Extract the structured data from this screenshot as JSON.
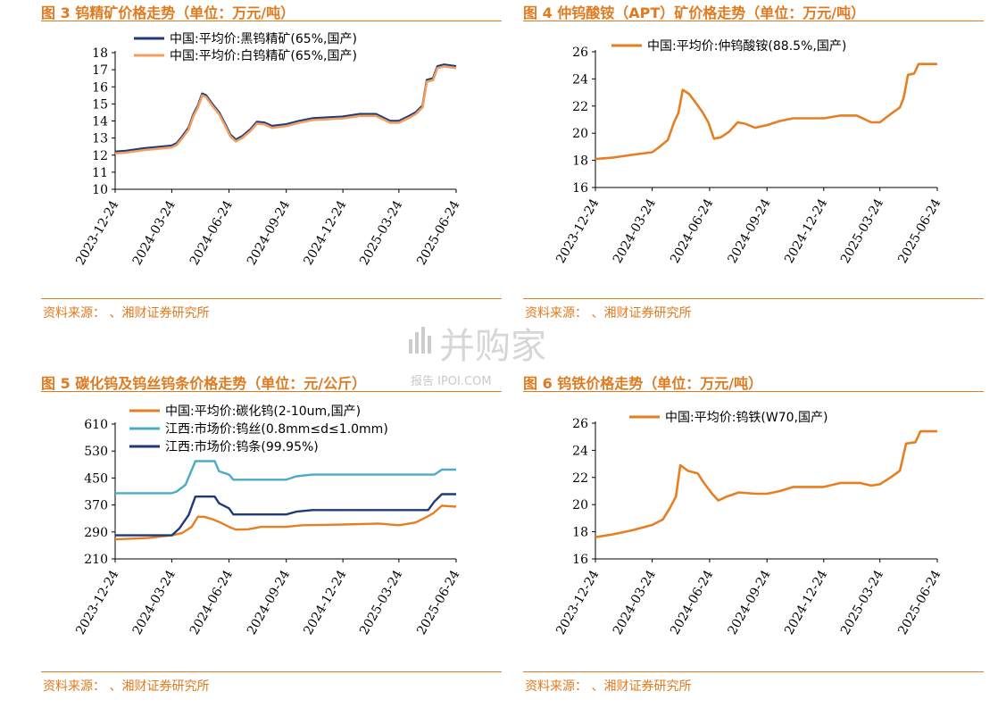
{
  "panels": [
    {
      "title": "图 3  钨精矿价格走势（单位：万元/吨）",
      "source": "资料来源：        、湘财证券研究所"
    },
    {
      "title": "图 4  仲钨酸铵（APT）矿价格走势（单位：万元/吨）",
      "source": "资料来源：        、湘财证券研究所"
    },
    {
      "title": "图 5  碳化钨及钨丝钨条价格走势（单位：元/公斤）",
      "source": "资料来源：        、湘财证券研究所"
    },
    {
      "title": "图 6  钨铁价格走势（单位：万元/吨）",
      "source": "资料来源：        、湘财证券研究所"
    }
  ],
  "watermark": {
    "main": "并购家",
    "sub": "报告 IPOI.COM"
  },
  "chart_data": [
    {
      "type": "line",
      "title": "",
      "xlabel": "",
      "ylabel": "",
      "x_ticks": [
        "2023-12-24",
        "2024-03-24",
        "2024-06-24",
        "2024-09-24",
        "2024-12-24",
        "2025-03-24",
        "2025-06-24"
      ],
      "y_ticks": [
        10,
        11,
        12,
        13,
        14,
        15,
        16,
        17,
        18
      ],
      "ylim": [
        10,
        18
      ],
      "legend": "top-left",
      "series": [
        {
          "name": "中国:平均价:黑钨精矿(65%,国产)",
          "color": "#1f3a7a",
          "points": [
            [
              "2023-12-24",
              12.2
            ],
            [
              "2024-01-10",
              12.25
            ],
            [
              "2024-02-10",
              12.4
            ],
            [
              "2024-03-10",
              12.5
            ],
            [
              "2024-03-24",
              12.55
            ],
            [
              "2024-04-01",
              12.7
            ],
            [
              "2024-04-10",
              13.1
            ],
            [
              "2024-04-20",
              13.6
            ],
            [
              "2024-04-28",
              14.4
            ],
            [
              "2024-05-05",
              14.9
            ],
            [
              "2024-05-12",
              15.6
            ],
            [
              "2024-05-18",
              15.5
            ],
            [
              "2024-05-28",
              15.0
            ],
            [
              "2024-06-08",
              14.5
            ],
            [
              "2024-06-18",
              13.8
            ],
            [
              "2024-06-26",
              13.2
            ],
            [
              "2024-07-05",
              12.9
            ],
            [
              "2024-07-15",
              13.1
            ],
            [
              "2024-07-28",
              13.5
            ],
            [
              "2024-08-08",
              13.95
            ],
            [
              "2024-08-20",
              13.9
            ],
            [
              "2024-09-01",
              13.7
            ],
            [
              "2024-09-24",
              13.8
            ],
            [
              "2024-10-15",
              14.0
            ],
            [
              "2024-11-05",
              14.15
            ],
            [
              "2024-12-24",
              14.25
            ],
            [
              "2025-01-20",
              14.4
            ],
            [
              "2025-02-15",
              14.4
            ],
            [
              "2025-03-10",
              14.0
            ],
            [
              "2025-03-24",
              14.0
            ],
            [
              "2025-04-10",
              14.3
            ],
            [
              "2025-04-20",
              14.5
            ],
            [
              "2025-05-01",
              14.9
            ],
            [
              "2025-05-08",
              16.4
            ],
            [
              "2025-05-18",
              16.5
            ],
            [
              "2025-05-25",
              17.2
            ],
            [
              "2025-06-05",
              17.3
            ],
            [
              "2025-06-24",
              17.2
            ]
          ]
        },
        {
          "name": "中国:平均价:白钨精矿(65%,国产)",
          "color": "#f0a060",
          "points": [
            [
              "2023-12-24",
              12.1
            ],
            [
              "2024-01-10",
              12.15
            ],
            [
              "2024-02-10",
              12.3
            ],
            [
              "2024-03-10",
              12.4
            ],
            [
              "2024-03-24",
              12.45
            ],
            [
              "2024-04-01",
              12.6
            ],
            [
              "2024-04-10",
              13.0
            ],
            [
              "2024-04-20",
              13.5
            ],
            [
              "2024-04-28",
              14.3
            ],
            [
              "2024-05-05",
              14.8
            ],
            [
              "2024-05-12",
              15.5
            ],
            [
              "2024-05-18",
              15.4
            ],
            [
              "2024-05-28",
              14.9
            ],
            [
              "2024-06-08",
              14.4
            ],
            [
              "2024-06-18",
              13.7
            ],
            [
              "2024-06-26",
              13.1
            ],
            [
              "2024-07-05",
              12.8
            ],
            [
              "2024-07-15",
              13.0
            ],
            [
              "2024-07-28",
              13.4
            ],
            [
              "2024-08-08",
              13.85
            ],
            [
              "2024-08-20",
              13.8
            ],
            [
              "2024-09-01",
              13.6
            ],
            [
              "2024-09-24",
              13.7
            ],
            [
              "2024-10-15",
              13.9
            ],
            [
              "2024-11-05",
              14.05
            ],
            [
              "2024-12-24",
              14.15
            ],
            [
              "2025-01-20",
              14.3
            ],
            [
              "2025-02-15",
              14.3
            ],
            [
              "2025-03-10",
              13.9
            ],
            [
              "2025-03-24",
              13.9
            ],
            [
              "2025-04-10",
              14.2
            ],
            [
              "2025-04-20",
              14.4
            ],
            [
              "2025-05-01",
              14.8
            ],
            [
              "2025-05-08",
              16.3
            ],
            [
              "2025-05-18",
              16.4
            ],
            [
              "2025-05-25",
              17.1
            ],
            [
              "2025-06-05",
              17.2
            ],
            [
              "2025-06-24",
              17.1
            ]
          ]
        }
      ]
    },
    {
      "type": "line",
      "title": "",
      "xlabel": "",
      "ylabel": "",
      "x_ticks": [
        "2023-12-24",
        "2024-03-24",
        "2024-06-24",
        "2024-09-24",
        "2024-12-24",
        "2025-03-24",
        "2025-06-24"
      ],
      "y_ticks": [
        16,
        18,
        20,
        22,
        24,
        26
      ],
      "ylim": [
        16,
        26
      ],
      "legend": "top-left",
      "series": [
        {
          "name": "中国:平均价:仲钨酸铵(88.5%,国产)",
          "color": "#e67e22",
          "points": [
            [
              "2023-12-24",
              18.1
            ],
            [
              "2024-01-20",
              18.2
            ],
            [
              "2024-02-20",
              18.4
            ],
            [
              "2024-03-24",
              18.6
            ],
            [
              "2024-04-05",
              19.0
            ],
            [
              "2024-04-18",
              19.5
            ],
            [
              "2024-04-28",
              20.8
            ],
            [
              "2024-05-05",
              21.5
            ],
            [
              "2024-05-12",
              23.2
            ],
            [
              "2024-05-22",
              22.9
            ],
            [
              "2024-06-01",
              22.3
            ],
            [
              "2024-06-12",
              21.6
            ],
            [
              "2024-06-22",
              20.8
            ],
            [
              "2024-07-01",
              19.6
            ],
            [
              "2024-07-12",
              19.7
            ],
            [
              "2024-07-25",
              20.1
            ],
            [
              "2024-08-08",
              20.8
            ],
            [
              "2024-08-20",
              20.7
            ],
            [
              "2024-09-05",
              20.4
            ],
            [
              "2024-09-24",
              20.6
            ],
            [
              "2024-10-15",
              20.9
            ],
            [
              "2024-11-05",
              21.1
            ],
            [
              "2024-12-24",
              21.1
            ],
            [
              "2025-01-20",
              21.3
            ],
            [
              "2025-02-15",
              21.3
            ],
            [
              "2025-03-10",
              20.8
            ],
            [
              "2025-03-24",
              20.8
            ],
            [
              "2025-04-10",
              21.4
            ],
            [
              "2025-04-25",
              21.9
            ],
            [
              "2025-05-01",
              22.6
            ],
            [
              "2025-05-08",
              24.3
            ],
            [
              "2025-05-18",
              24.4
            ],
            [
              "2025-05-25",
              25.1
            ],
            [
              "2025-06-24",
              25.1
            ]
          ]
        }
      ]
    },
    {
      "type": "line",
      "title": "",
      "xlabel": "",
      "ylabel": "",
      "x_ticks": [
        "2023-12-24",
        "2024-03-24",
        "2024-06-24",
        "2024-09-24",
        "2024-12-24",
        "2025-03-24",
        "2025-06-24"
      ],
      "y_ticks": [
        210,
        290,
        370,
        450,
        530,
        610
      ],
      "ylim": [
        210,
        610
      ],
      "legend": "top-left",
      "series": [
        {
          "name": "中国:平均价:碳化钨(2-10um,国产)",
          "color": "#e67e22",
          "points": [
            [
              "2023-12-24",
              268
            ],
            [
              "2024-02-15",
              272
            ],
            [
              "2024-03-24",
              280
            ],
            [
              "2024-04-10",
              287
            ],
            [
              "2024-04-25",
              305
            ],
            [
              "2024-05-05",
              335
            ],
            [
              "2024-05-15",
              335
            ],
            [
              "2024-05-28",
              328
            ],
            [
              "2024-06-10",
              318
            ],
            [
              "2024-06-24",
              305
            ],
            [
              "2024-07-05",
              297
            ],
            [
              "2024-07-25",
              298
            ],
            [
              "2024-08-15",
              305
            ],
            [
              "2024-09-24",
              305
            ],
            [
              "2024-10-20",
              310
            ],
            [
              "2024-12-24",
              312
            ],
            [
              "2025-02-20",
              315
            ],
            [
              "2025-03-24",
              310
            ],
            [
              "2025-04-20",
              318
            ],
            [
              "2025-05-05",
              332
            ],
            [
              "2025-05-18",
              345
            ],
            [
              "2025-06-01",
              368
            ],
            [
              "2025-06-24",
              365
            ]
          ]
        },
        {
          "name": "江西:市场价:钨丝(0.8mm≤d≤1.0mm)",
          "color": "#4bacc6",
          "points": [
            [
              "2023-12-24",
              405
            ],
            [
              "2024-03-24",
              405
            ],
            [
              "2024-04-01",
              410
            ],
            [
              "2024-04-15",
              430
            ],
            [
              "2024-05-01",
              500
            ],
            [
              "2024-06-01",
              500
            ],
            [
              "2024-06-08",
              470
            ],
            [
              "2024-06-24",
              460
            ],
            [
              "2024-07-01",
              445
            ],
            [
              "2024-09-24",
              445
            ],
            [
              "2024-10-10",
              455
            ],
            [
              "2024-11-05",
              460
            ],
            [
              "2025-05-20",
              460
            ],
            [
              "2025-06-01",
              475
            ],
            [
              "2025-06-24",
              475
            ]
          ]
        },
        {
          "name": "江西:市场价:钨条(99.95%)",
          "color": "#1f3a7a",
          "points": [
            [
              "2023-12-24",
              280
            ],
            [
              "2024-03-24",
              280
            ],
            [
              "2024-04-05",
              300
            ],
            [
              "2024-04-20",
              340
            ],
            [
              "2024-05-01",
              395
            ],
            [
              "2024-06-01",
              395
            ],
            [
              "2024-06-08",
              375
            ],
            [
              "2024-06-24",
              360
            ],
            [
              "2024-07-01",
              342
            ],
            [
              "2024-09-24",
              342
            ],
            [
              "2024-10-10",
              350
            ],
            [
              "2024-11-05",
              355
            ],
            [
              "2025-05-10",
              355
            ],
            [
              "2025-05-20",
              380
            ],
            [
              "2025-06-01",
              402
            ],
            [
              "2025-06-24",
              402
            ]
          ]
        }
      ]
    },
    {
      "type": "line",
      "title": "",
      "xlabel": "",
      "ylabel": "",
      "x_ticks": [
        "2023-12-24",
        "2024-03-24",
        "2024-06-24",
        "2024-09-24",
        "2024-12-24",
        "2025-03-24",
        "2025-06-24"
      ],
      "y_ticks": [
        16,
        18,
        20,
        22,
        24,
        26
      ],
      "ylim": [
        16,
        26
      ],
      "legend": "top-left",
      "series": [
        {
          "name": "中国:平均价:钨铁(W70,国产)",
          "color": "#e67e22",
          "points": [
            [
              "2023-12-24",
              17.6
            ],
            [
              "2024-01-20",
              17.8
            ],
            [
              "2024-02-20",
              18.1
            ],
            [
              "2024-03-24",
              18.5
            ],
            [
              "2024-04-10",
              18.9
            ],
            [
              "2024-04-22",
              19.8
            ],
            [
              "2024-05-01",
              20.6
            ],
            [
              "2024-05-08",
              22.9
            ],
            [
              "2024-05-20",
              22.5
            ],
            [
              "2024-06-05",
              22.3
            ],
            [
              "2024-06-15",
              21.6
            ],
            [
              "2024-06-28",
              20.8
            ],
            [
              "2024-07-08",
              20.3
            ],
            [
              "2024-07-22",
              20.6
            ],
            [
              "2024-08-10",
              20.9
            ],
            [
              "2024-09-05",
              20.8
            ],
            [
              "2024-09-24",
              20.8
            ],
            [
              "2024-10-15",
              21.0
            ],
            [
              "2024-11-05",
              21.3
            ],
            [
              "2024-12-24",
              21.3
            ],
            [
              "2025-01-20",
              21.6
            ],
            [
              "2025-02-20",
              21.6
            ],
            [
              "2025-03-10",
              21.4
            ],
            [
              "2025-03-24",
              21.5
            ],
            [
              "2025-04-10",
              22.0
            ],
            [
              "2025-04-25",
              22.5
            ],
            [
              "2025-05-05",
              24.5
            ],
            [
              "2025-05-20",
              24.6
            ],
            [
              "2025-05-28",
              25.4
            ],
            [
              "2025-06-24",
              25.4
            ]
          ]
        }
      ]
    }
  ]
}
